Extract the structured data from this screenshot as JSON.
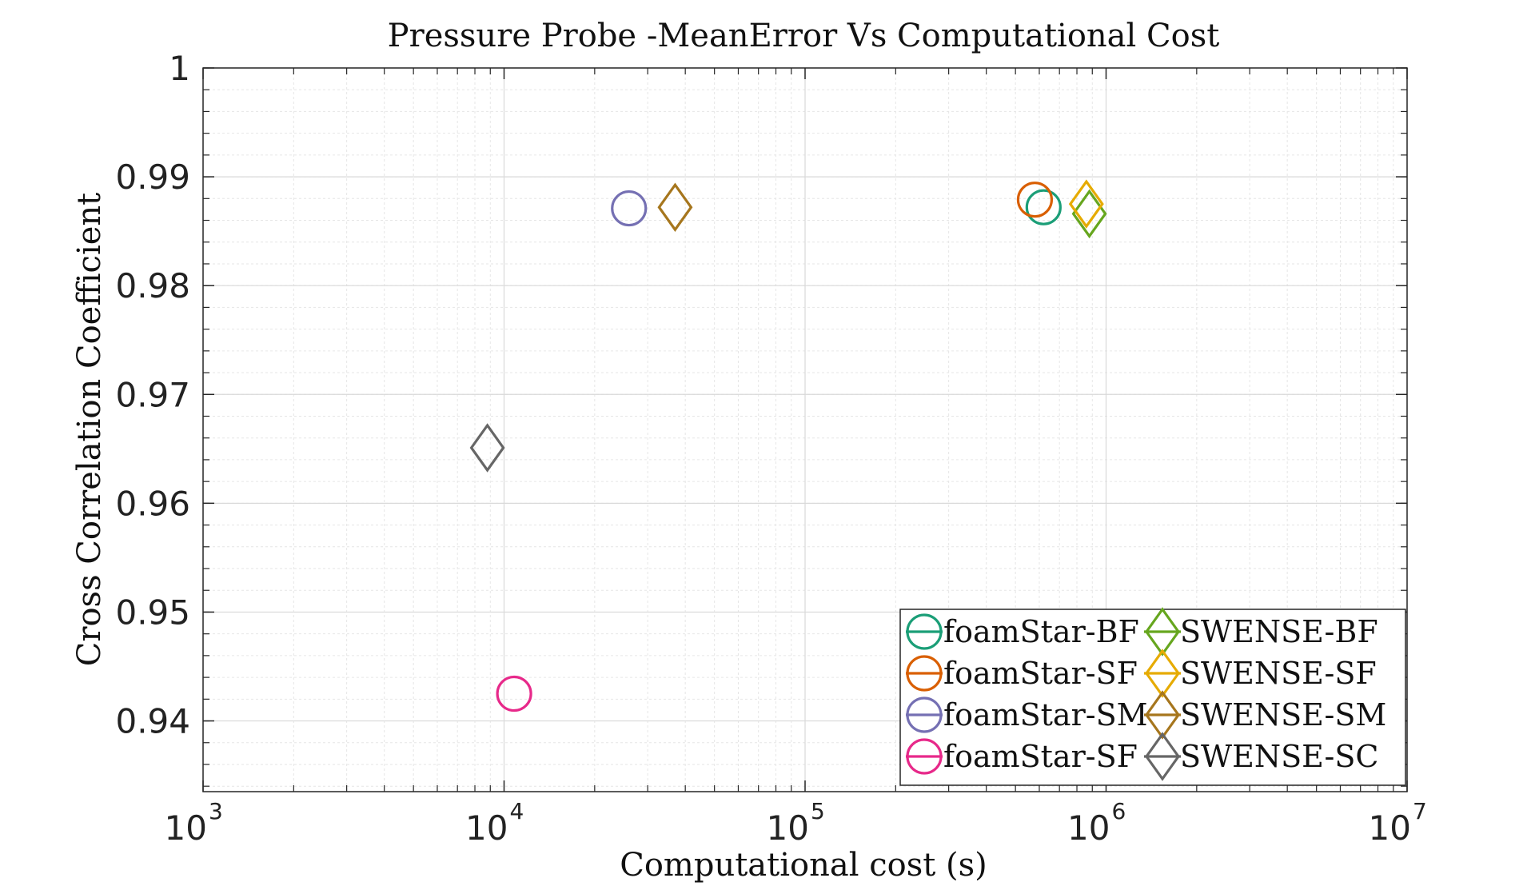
{
  "chart_data": {
    "type": "scatter",
    "title": "Pressure Probe -MeanError Vs Computational Cost",
    "xlabel": "Computational cost (s)",
    "ylabel": "Cross Correlation Coefficient",
    "xscale": "log",
    "xlim": [
      1000,
      10000000
    ],
    "ylim": [
      0.9335,
      1.0
    ],
    "x_ticks": [
      {
        "value": 1000,
        "base": "10",
        "exp": "3"
      },
      {
        "value": 10000,
        "base": "10",
        "exp": "4"
      },
      {
        "value": 100000,
        "base": "10",
        "exp": "5"
      },
      {
        "value": 1000000,
        "base": "10",
        "exp": "6"
      },
      {
        "value": 10000000,
        "base": "10",
        "exp": "7"
      }
    ],
    "y_ticks": [
      {
        "value": 0.94,
        "label": "0.94"
      },
      {
        "value": 0.95,
        "label": "0.95"
      },
      {
        "value": 0.96,
        "label": "0.96"
      },
      {
        "value": 0.97,
        "label": "0.97"
      },
      {
        "value": 0.98,
        "label": "0.98"
      },
      {
        "value": 0.99,
        "label": "0.99"
      },
      {
        "value": 1.0,
        "label": "1"
      }
    ],
    "grid": true,
    "legend_position": "bottom-right",
    "series": [
      {
        "name": "foamStar-BF",
        "marker": "circle",
        "color": "#1b9e77",
        "x": 620000,
        "y": 0.9872
      },
      {
        "name": "foamStar-SF",
        "marker": "circle",
        "color": "#d95f02",
        "x": 580000,
        "y": 0.9879
      },
      {
        "name": "foamStar-SM",
        "marker": "circle",
        "color": "#7570b3",
        "x": 26000,
        "y": 0.9871
      },
      {
        "name": "foamStar-SF",
        "marker": "circle",
        "color": "#e7298a",
        "x": 10800,
        "y": 0.9425
      },
      {
        "name": "SWENSE-BF",
        "marker": "diamond",
        "color": "#66a61e",
        "x": 880000,
        "y": 0.9866
      },
      {
        "name": "SWENSE-SF",
        "marker": "diamond",
        "color": "#e6ab02",
        "x": 860000,
        "y": 0.9875
      },
      {
        "name": "SWENSE-SM",
        "marker": "diamond",
        "color": "#a6761d",
        "x": 37000,
        "y": 0.9872
      },
      {
        "name": "SWENSE-SC",
        "marker": "diamond",
        "color": "#666666",
        "x": 8800,
        "y": 0.9651
      }
    ]
  }
}
